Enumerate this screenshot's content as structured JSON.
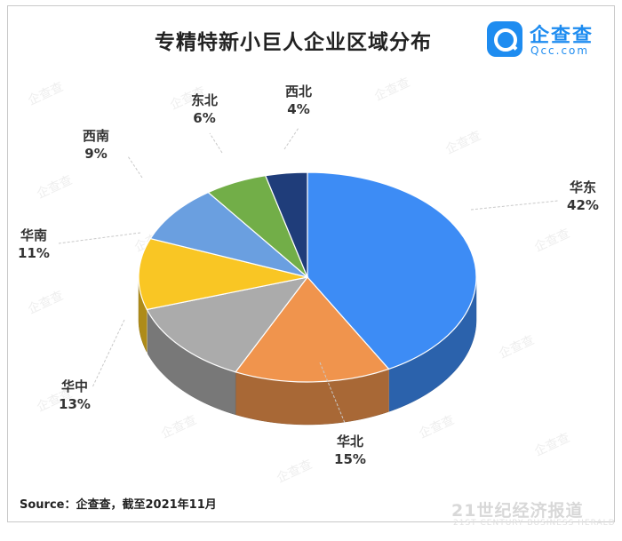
{
  "title": "专精特新小巨人企业区域分布",
  "logo": {
    "name": "企查查",
    "domain": "Qcc.com"
  },
  "source": "Source：企查查，截至2021年11月",
  "brand": {
    "name": "21世纪经济报道",
    "sub": "21ST CENTURY BUSINESS HERALD"
  },
  "watermark": "企查查",
  "chart_data": {
    "type": "pie",
    "title": "专精特新小巨人企业区域分布",
    "slices": [
      {
        "name": "华东",
        "value": 42,
        "label": "42%",
        "color": "#3d8cf5"
      },
      {
        "name": "华北",
        "value": 15,
        "label": "15%",
        "color": "#f0944d"
      },
      {
        "name": "华中",
        "value": 13,
        "label": "13%",
        "color": "#ababab"
      },
      {
        "name": "华南",
        "value": 11,
        "label": "11%",
        "color": "#f9c624"
      },
      {
        "name": "西南",
        "value": 9,
        "label": "9%",
        "color": "#6a9fe0"
      },
      {
        "name": "东北",
        "value": 6,
        "label": "6%",
        "color": "#72ae48"
      },
      {
        "name": "西北",
        "value": 4,
        "label": "4%",
        "color": "#1f3d7a"
      }
    ]
  }
}
